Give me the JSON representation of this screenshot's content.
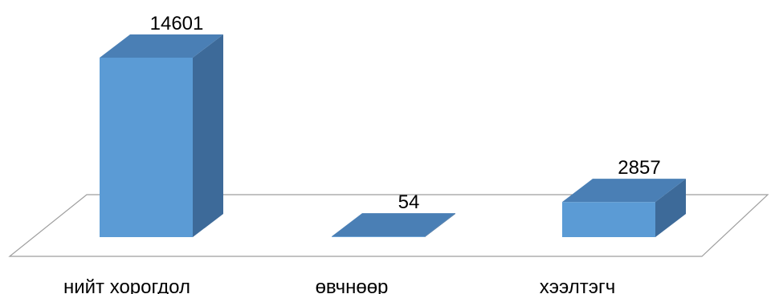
{
  "chart_data": {
    "type": "bar",
    "style": "3d-column",
    "categories": [
      "нийт хорогдол",
      "өвчнөөр",
      "хээлтэгч"
    ],
    "values": [
      14601,
      54,
      2857
    ],
    "data_labels": [
      "14601",
      "54",
      "2857"
    ],
    "title": "",
    "xlabel": "",
    "ylabel": "",
    "ylim": [
      0,
      14601
    ],
    "grid": false,
    "legend": "none",
    "colors": {
      "bar_front": "#5B9BD5",
      "bar_top": "#4A7FB5",
      "bar_side": "#3D6A99",
      "floor_stroke": "#9E9E9E",
      "text": "#000000"
    }
  }
}
